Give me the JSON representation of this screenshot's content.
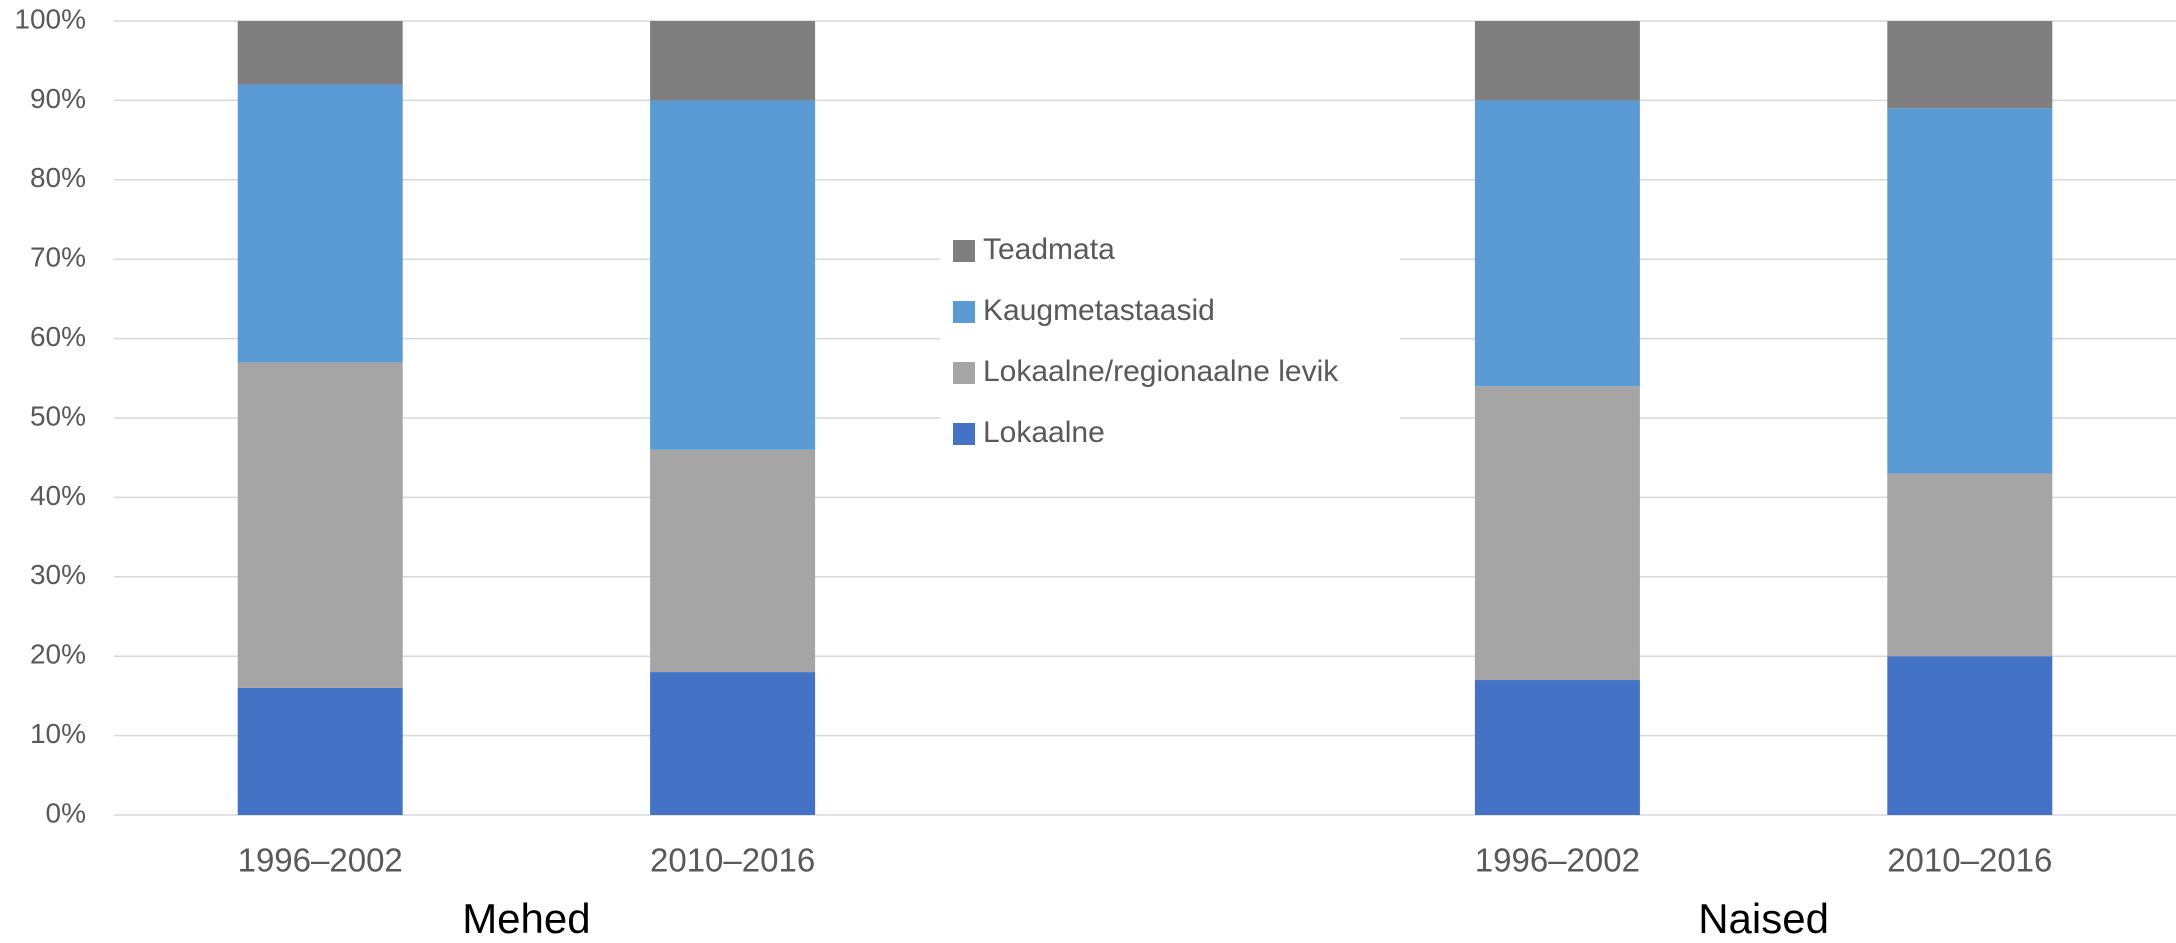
{
  "chart_data": {
    "type": "stacked_bar",
    "categories": [
      "1996–2002",
      "2010–2016",
      null,
      "1996–2002",
      "2010–2016"
    ],
    "groups": [
      {
        "name": "Mehed",
        "start": 0,
        "end": 1
      },
      {
        "name": "Naised",
        "start": 3,
        "end": 4
      }
    ],
    "series": [
      {
        "name": "Lokaalne",
        "color": "#4472c4",
        "values": [
          16,
          18,
          null,
          17,
          20
        ]
      },
      {
        "name": "Lokaalne/regionaalne levik",
        "color": "#a5a5a5",
        "values": [
          41,
          28,
          null,
          37,
          23
        ]
      },
      {
        "name": "Kaugmetastaasid",
        "color": "#5b9bd5",
        "values": [
          35,
          44,
          null,
          36,
          46
        ]
      },
      {
        "name": "Teadmata",
        "color": "#7f7f7f",
        "values": [
          8,
          10,
          null,
          10,
          11
        ]
      }
    ],
    "ylim": [
      0,
      100
    ],
    "yticks": [
      {
        "value": 0,
        "label": "0%"
      },
      {
        "value": 10,
        "label": "10%"
      },
      {
        "value": 20,
        "label": "20%"
      },
      {
        "value": 30,
        "label": "30%"
      },
      {
        "value": 40,
        "label": "40%"
      },
      {
        "value": 50,
        "label": "50%"
      },
      {
        "value": 60,
        "label": "60%"
      },
      {
        "value": 70,
        "label": "70%"
      },
      {
        "value": 80,
        "label": "80%"
      },
      {
        "value": 90,
        "label": "90%"
      },
      {
        "value": 100,
        "label": "100%"
      }
    ],
    "grid": true,
    "legend": "center"
  }
}
